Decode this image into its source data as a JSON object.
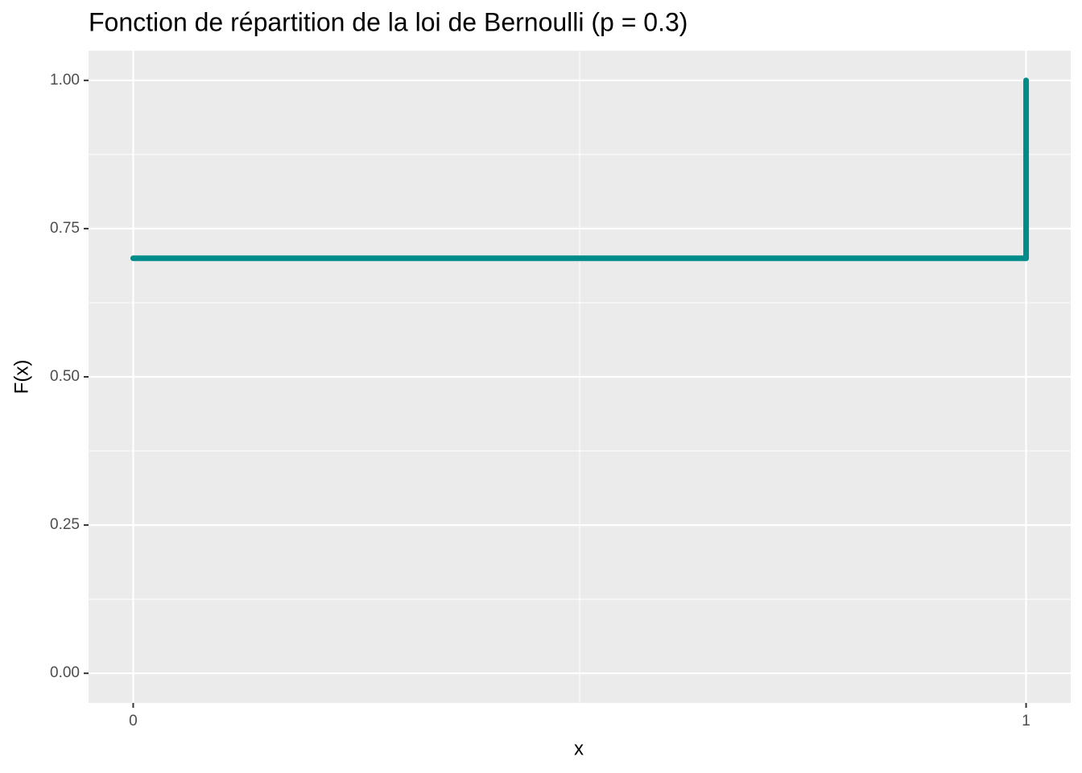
{
  "chart_data": {
    "type": "step",
    "title": "Fonction de répartition de la loi de Bernoulli (p = 0.3)",
    "x_label": "x",
    "y_label": "F(x)",
    "x": [
      0,
      1
    ],
    "series": [
      {
        "color": "#008B8B",
        "values": [
          0.7,
          1
        ]
      }
    ],
    "xlim": [
      -0.05,
      1.05
    ],
    "ylim": [
      -0.05,
      1.05
    ],
    "xticks": [
      0,
      1
    ],
    "yticks": [
      {
        "value": 0,
        "label": "0.00"
      },
      {
        "value": 0.25,
        "label": "0.25"
      },
      {
        "value": 0.5,
        "label": "0.50"
      },
      {
        "value": 0.75,
        "label": "0.75"
      },
      {
        "value": 1,
        "label": "1.00"
      }
    ],
    "xminor": [
      0.5
    ],
    "yminor": [
      0.125,
      0.375,
      0.625,
      0.875
    ],
    "grid": true
  }
}
